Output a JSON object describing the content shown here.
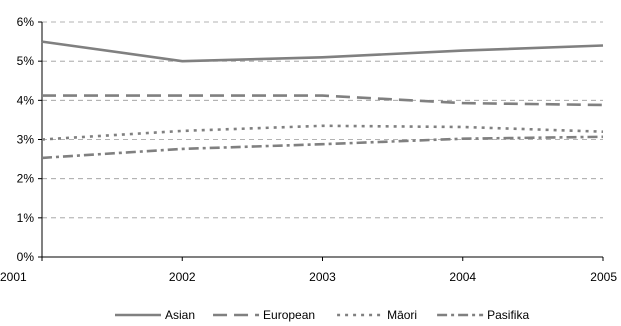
{
  "chart_data": {
    "type": "line",
    "x": [
      "2001",
      "2002",
      "2003",
      "2004",
      "2005"
    ],
    "ylim": [
      0,
      6
    ],
    "yticks": [
      "0%",
      "1%",
      "2%",
      "3%",
      "4%",
      "5%",
      "6%"
    ],
    "grid": true,
    "legend_position": "bottom",
    "series": [
      {
        "name": "Asian",
        "values": [
          5.5,
          5.0,
          5.1,
          5.27,
          5.4
        ],
        "dash": "solid",
        "color": "#808080"
      },
      {
        "name": "European",
        "values": [
          4.12,
          4.12,
          4.12,
          3.93,
          3.88
        ],
        "dash": "longdash",
        "color": "#808080"
      },
      {
        "name": "Māori",
        "values": [
          3.0,
          3.22,
          3.35,
          3.32,
          3.2
        ],
        "dash": "dot",
        "color": "#808080"
      },
      {
        "name": "Pasifika",
        "values": [
          2.53,
          2.76,
          2.88,
          3.02,
          3.07
        ],
        "dash": "dashdot",
        "color": "#808080"
      }
    ]
  }
}
